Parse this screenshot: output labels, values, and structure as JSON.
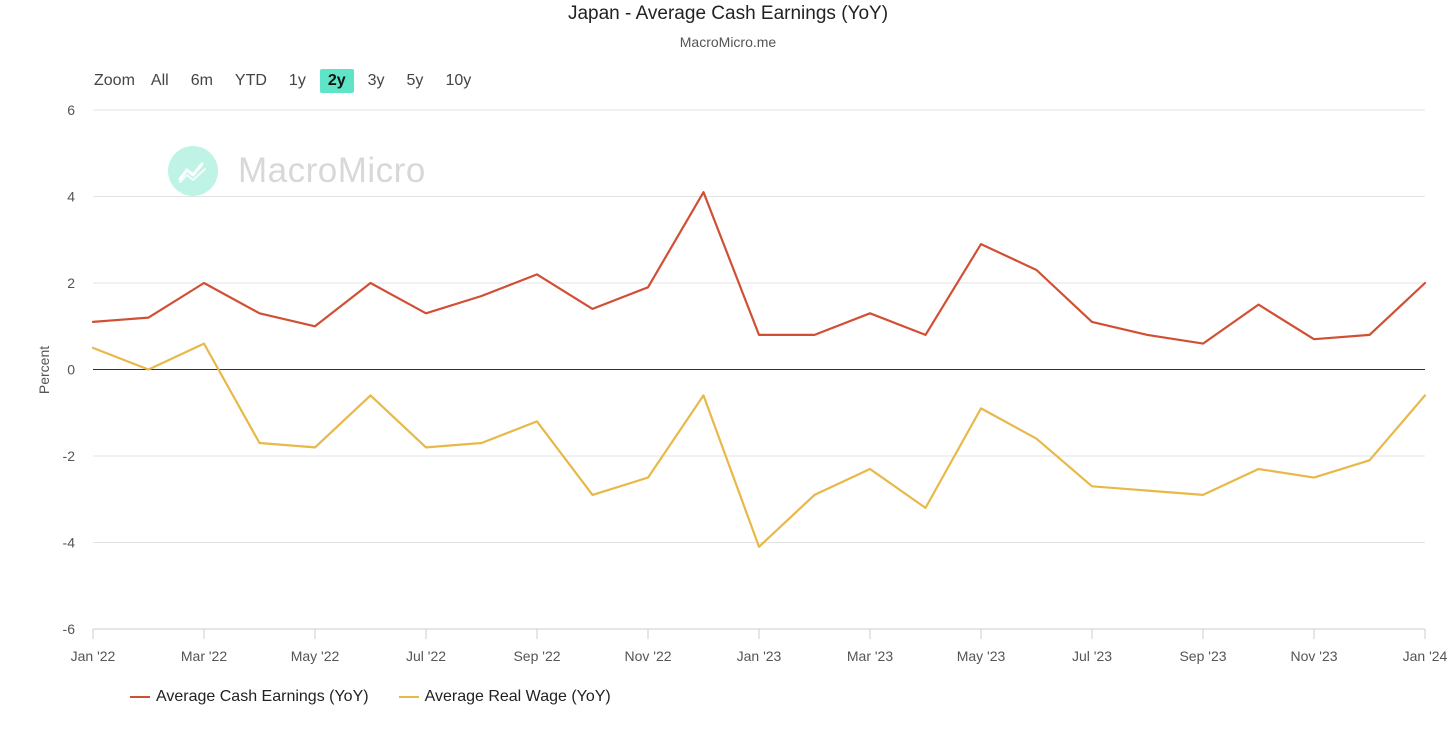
{
  "header": {
    "title": "Japan - Average Cash Earnings (YoY)",
    "subtitle": "MacroMicro.me"
  },
  "zoom": {
    "label": "Zoom",
    "buttons": [
      "All",
      "6m",
      "YTD",
      "1y",
      "2y",
      "3y",
      "5y",
      "10y"
    ],
    "active": "2y"
  },
  "watermark": {
    "text": "MacroMicro",
    "icon": "chart-trend-icon"
  },
  "colors": {
    "cash": "#d14f34",
    "real": "#e8b848",
    "accent": "#5ee4c6"
  },
  "chart_data": {
    "type": "line",
    "title": "Japan - Average Cash Earnings (YoY)",
    "subtitle": "MacroMicro.me",
    "ylabel": "Percent",
    "xlabel": "",
    "ylim": [
      -6,
      6
    ],
    "yticks": [
      -6,
      -4,
      -2,
      0,
      2,
      4,
      6
    ],
    "x": [
      "2022-01",
      "2022-02",
      "2022-03",
      "2022-04",
      "2022-05",
      "2022-06",
      "2022-07",
      "2022-08",
      "2022-09",
      "2022-10",
      "2022-11",
      "2022-12",
      "2023-01",
      "2023-02",
      "2023-03",
      "2023-04",
      "2023-05",
      "2023-06",
      "2023-07",
      "2023-08",
      "2023-09",
      "2023-10",
      "2023-11",
      "2023-12",
      "2024-01"
    ],
    "x_tick_labels": [
      "Jan '22",
      "Mar '22",
      "May '22",
      "Jul '22",
      "Sep '22",
      "Nov '22",
      "Jan '23",
      "Mar '23",
      "May '23",
      "Jul '23",
      "Sep '23",
      "Nov '23",
      "Jan '24"
    ],
    "grid": true,
    "legend": "bottom-left",
    "series": [
      {
        "name": "Average Cash Earnings (YoY)",
        "color": "#d14f34",
        "values": [
          1.1,
          1.2,
          2.0,
          1.3,
          1.0,
          2.0,
          1.3,
          1.7,
          2.2,
          1.4,
          1.9,
          4.1,
          0.8,
          0.8,
          1.3,
          0.8,
          2.9,
          2.3,
          1.1,
          0.8,
          0.6,
          1.5,
          0.7,
          0.8,
          2.0
        ]
      },
      {
        "name": "Average Real Wage (YoY)",
        "color": "#e8b848",
        "values": [
          0.5,
          0.0,
          0.6,
          -1.7,
          -1.8,
          -0.6,
          -1.8,
          -1.7,
          -1.2,
          -2.9,
          -2.5,
          -0.6,
          -4.1,
          -2.9,
          -2.3,
          -3.2,
          -0.9,
          -1.6,
          -2.7,
          -2.8,
          -2.9,
          -2.3,
          -2.5,
          -2.1,
          -0.6
        ]
      }
    ]
  }
}
